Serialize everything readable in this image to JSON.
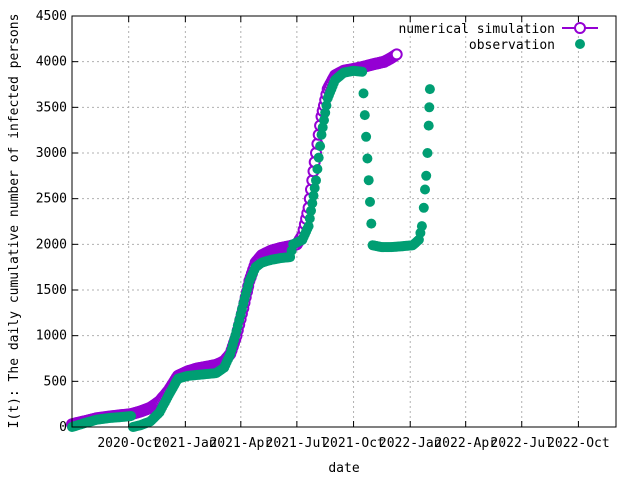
{
  "chart_data": {
    "type": "scatter",
    "title": "",
    "xlabel": "date",
    "ylabel": "I(t): The daily cumulative number of infected persons",
    "xlim": [
      "2020-07-01",
      "2022-12-01"
    ],
    "ylim": [
      0,
      4500
    ],
    "grid": true,
    "legend_position": "top-right",
    "y_ticks": [
      0,
      500,
      1000,
      1500,
      2000,
      2500,
      3000,
      3500,
      4000,
      4500
    ],
    "x_ticks": [
      {
        "date": "2020-10-01",
        "label": "2020-Oct"
      },
      {
        "date": "2021-01-01",
        "label": "2021-Jan"
      },
      {
        "date": "2021-04-01",
        "label": "2021-Apr"
      },
      {
        "date": "2021-07-01",
        "label": "2021-Jul"
      },
      {
        "date": "2021-10-01",
        "label": "2021-Oct"
      },
      {
        "date": "2022-01-01",
        "label": "2022-Jan"
      },
      {
        "date": "2022-04-01",
        "label": "2022-Apr"
      },
      {
        "date": "2022-07-01",
        "label": "2022-Jul"
      },
      {
        "date": "2022-10-01",
        "label": "2022-Oct"
      }
    ],
    "series": [
      {
        "name": "numerical simulation",
        "color": "#9400d3",
        "marker": "open-circle-line",
        "points": [
          [
            "2020-07-01",
            30
          ],
          [
            "2020-07-20",
            60
          ],
          [
            "2020-08-10",
            95
          ],
          [
            "2020-09-01",
            115
          ],
          [
            "2020-09-20",
            130
          ],
          [
            "2020-10-05",
            140
          ],
          [
            "2020-10-20",
            170
          ],
          [
            "2020-11-05",
            210
          ],
          [
            "2020-11-20",
            280
          ],
          [
            "2020-12-05",
            400
          ],
          [
            "2020-12-20",
            560
          ],
          [
            "2021-01-05",
            610
          ],
          [
            "2021-01-20",
            640
          ],
          [
            "2021-02-05",
            660
          ],
          [
            "2021-02-20",
            680
          ],
          [
            "2021-03-05",
            720
          ],
          [
            "2021-03-15",
            800
          ],
          [
            "2021-03-25",
            1000
          ],
          [
            "2021-04-05",
            1300
          ],
          [
            "2021-04-15",
            1600
          ],
          [
            "2021-04-25",
            1800
          ],
          [
            "2021-05-05",
            1880
          ],
          [
            "2021-05-20",
            1930
          ],
          [
            "2021-06-05",
            1960
          ],
          [
            "2021-06-20",
            1980
          ],
          [
            "2021-07-01",
            2000
          ],
          [
            "2021-07-10",
            2100
          ],
          [
            "2021-07-20",
            2400
          ],
          [
            "2021-08-01",
            3000
          ],
          [
            "2021-08-10",
            3400
          ],
          [
            "2021-08-20",
            3700
          ],
          [
            "2021-09-01",
            3850
          ],
          [
            "2021-09-15",
            3900
          ],
          [
            "2021-10-01",
            3920
          ],
          [
            "2021-10-15",
            3940
          ],
          [
            "2021-11-01",
            3970
          ],
          [
            "2021-11-20",
            4000
          ],
          [
            "2021-12-01",
            4040
          ],
          [
            "2021-12-10",
            4080
          ]
        ]
      },
      {
        "name": "observation",
        "color": "#009e73",
        "marker": "filled-circle",
        "points": [
          [
            "2020-07-01",
            0
          ],
          [
            "2020-07-20",
            40
          ],
          [
            "2020-08-10",
            80
          ],
          [
            "2020-09-01",
            100
          ],
          [
            "2020-09-20",
            110
          ],
          [
            "2020-10-05",
            120
          ],
          [
            "2020-10-08",
            0
          ],
          [
            "2020-10-20",
            20
          ],
          [
            "2020-11-05",
            60
          ],
          [
            "2020-11-20",
            160
          ],
          [
            "2020-12-05",
            350
          ],
          [
            "2020-12-20",
            530
          ],
          [
            "2021-01-05",
            560
          ],
          [
            "2021-01-20",
            570
          ],
          [
            "2021-02-05",
            580
          ],
          [
            "2021-02-20",
            590
          ],
          [
            "2021-03-05",
            650
          ],
          [
            "2021-03-15",
            800
          ],
          [
            "2021-03-25",
            1050
          ],
          [
            "2021-04-05",
            1350
          ],
          [
            "2021-04-15",
            1600
          ],
          [
            "2021-04-25",
            1750
          ],
          [
            "2021-05-05",
            1800
          ],
          [
            "2021-05-20",
            1830
          ],
          [
            "2021-06-05",
            1850
          ],
          [
            "2021-06-20",
            1860
          ],
          [
            "2021-06-25",
            2000
          ],
          [
            "2021-07-10",
            2050
          ],
          [
            "2021-07-20",
            2200
          ],
          [
            "2021-08-01",
            2700
          ],
          [
            "2021-08-10",
            3200
          ],
          [
            "2021-08-20",
            3600
          ],
          [
            "2021-09-01",
            3800
          ],
          [
            "2021-09-15",
            3880
          ],
          [
            "2021-10-01",
            3900
          ],
          [
            "2021-10-15",
            3890
          ],
          [
            "2021-11-01",
            1990
          ],
          [
            "2021-11-15",
            1970
          ],
          [
            "2021-12-01",
            1970
          ],
          [
            "2021-12-20",
            1980
          ],
          [
            "2022-01-05",
            1990
          ],
          [
            "2022-01-15",
            2050
          ],
          [
            "2022-01-20",
            2200
          ],
          [
            "2022-01-23",
            2400
          ],
          [
            "2022-01-25",
            2600
          ],
          [
            "2022-01-27",
            2750
          ],
          [
            "2022-01-29",
            3000
          ],
          [
            "2022-01-31",
            3300
          ],
          [
            "2022-02-01",
            3500
          ],
          [
            "2022-02-02",
            3700
          ]
        ]
      }
    ]
  }
}
